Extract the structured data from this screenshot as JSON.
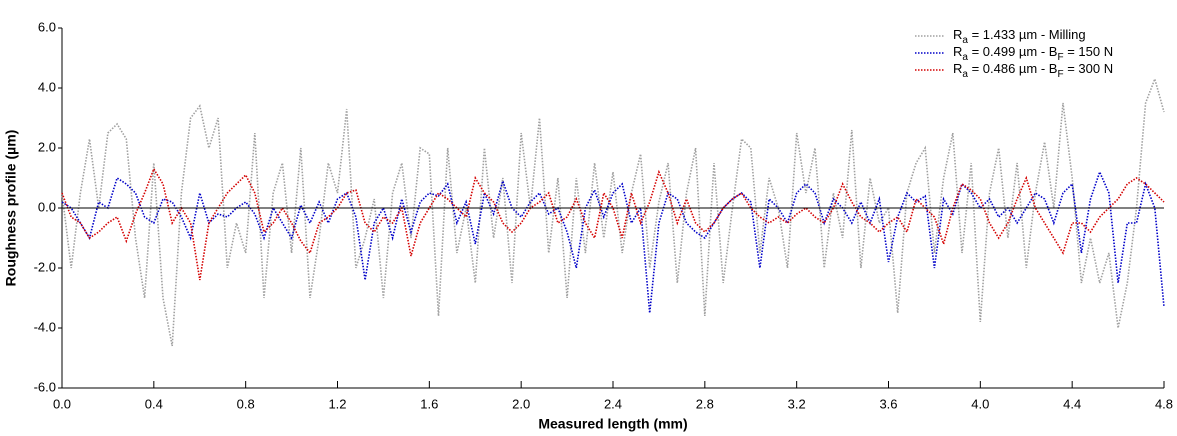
{
  "chart_data": {
    "type": "line",
    "xlabel": "Measured length (mm)",
    "ylabel": "Roughness profile (µm)",
    "x": [
      0,
      0.04,
      0.08,
      0.12,
      0.16,
      0.2,
      0.24,
      0.28,
      0.32,
      0.36,
      0.4,
      0.44,
      0.48,
      0.52,
      0.56,
      0.6,
      0.64,
      0.68,
      0.72,
      0.76,
      0.8,
      0.84,
      0.88,
      0.92,
      0.96,
      1.0,
      1.04,
      1.08,
      1.12,
      1.16,
      1.2,
      1.24,
      1.28,
      1.32,
      1.36,
      1.4,
      1.44,
      1.48,
      1.52,
      1.56,
      1.6,
      1.64,
      1.68,
      1.72,
      1.76,
      1.8,
      1.84,
      1.88,
      1.92,
      1.96,
      2.0,
      2.04,
      2.08,
      2.12,
      2.16,
      2.2,
      2.24,
      2.28,
      2.32,
      2.36,
      2.4,
      2.44,
      2.48,
      2.52,
      2.56,
      2.6,
      2.64,
      2.68,
      2.72,
      2.76,
      2.8,
      2.84,
      2.88,
      2.92,
      2.96,
      3.0,
      3.04,
      3.08,
      3.12,
      3.16,
      3.2,
      3.24,
      3.28,
      3.32,
      3.36,
      3.4,
      3.44,
      3.48,
      3.52,
      3.56,
      3.6,
      3.64,
      3.68,
      3.72,
      3.76,
      3.8,
      3.84,
      3.88,
      3.92,
      3.96,
      4.0,
      4.04,
      4.08,
      4.12,
      4.16,
      4.2,
      4.24,
      4.28,
      4.32,
      4.36,
      4.4,
      4.44,
      4.48,
      4.52,
      4.56,
      4.6,
      4.64,
      4.68,
      4.72,
      4.76,
      4.8
    ],
    "series": [
      {
        "name": "Ra = 1.433 µm - Milling",
        "color": "#a0a0a0",
        "values": [
          0.5,
          -2.0,
          0.5,
          2.3,
          0.0,
          2.5,
          2.8,
          2.3,
          -1.0,
          -3.0,
          1.5,
          -3.0,
          -4.6,
          0.5,
          3.0,
          3.4,
          2.0,
          3.0,
          -2.0,
          -0.5,
          -1.5,
          2.5,
          -3.0,
          0.5,
          1.5,
          -1.5,
          2.0,
          -3.0,
          -1.0,
          1.5,
          0.5,
          3.3,
          -2.0,
          -1.0,
          0.3,
          -3.0,
          0.5,
          1.5,
          -1.0,
          2.0,
          1.8,
          -3.6,
          2.0,
          -1.5,
          0.0,
          -2.5,
          2.0,
          -1.0,
          1.0,
          -2.5,
          2.5,
          0.0,
          3.0,
          -1.5,
          1.0,
          -3.0,
          1.0,
          -1.5,
          1.5,
          -1.0,
          1.2,
          -1.5,
          0.5,
          1.8,
          -2.0,
          0.2,
          1.5,
          -2.5,
          0.5,
          2.0,
          -3.6,
          1.5,
          -2.5,
          0.0,
          2.3,
          2.0,
          -1.5,
          1.0,
          0.0,
          -2.0,
          2.5,
          0.5,
          2.0,
          -2.0,
          0.5,
          -1.0,
          2.6,
          -2.0,
          1.0,
          -0.5,
          0.0,
          -3.5,
          0.5,
          1.5,
          2.0,
          -1.5,
          1.0,
          2.5,
          -1.5,
          1.5,
          -3.8,
          0.5,
          2.0,
          -1.0,
          1.5,
          -2.0,
          0.5,
          2.2,
          0.0,
          3.5,
          1.0,
          -2.5,
          -1.0,
          -2.5,
          -1.5,
          -4.0,
          -2.5,
          0.0,
          3.5,
          4.3,
          3.2
        ]
      },
      {
        "name": "Ra = 0.499 µm - BF = 150 N",
        "color": "#0000c8",
        "values": [
          0.2,
          0.0,
          -0.5,
          -1.0,
          0.2,
          0.0,
          1.0,
          0.8,
          0.5,
          -0.3,
          -0.5,
          0.3,
          0.2,
          -0.3,
          -1.0,
          0.5,
          -0.5,
          -0.2,
          -0.3,
          0.0,
          0.2,
          -0.2,
          -1.0,
          0.0,
          -0.5,
          -1.0,
          0.1,
          -0.5,
          0.2,
          -0.5,
          0.3,
          0.5,
          -0.3,
          -2.4,
          -0.5,
          0.0,
          -1.0,
          0.3,
          -0.8,
          0.2,
          0.5,
          0.4,
          0.8,
          -0.5,
          0.2,
          -1.2,
          0.5,
          -0.2,
          0.9,
          0.0,
          -0.3,
          0.2,
          0.5,
          -0.2,
          0.0,
          -0.8,
          -2.0,
          0.0,
          0.6,
          -0.3,
          0.5,
          0.8,
          -0.5,
          0.0,
          -3.5,
          -0.5,
          0.5,
          0.3,
          -0.5,
          -0.8,
          -1.0,
          -0.5,
          0.0,
          0.3,
          0.5,
          0.2,
          -2.0,
          0.3,
          0.0,
          -0.5,
          0.5,
          0.8,
          0.5,
          -0.5,
          0.3,
          0.0,
          -0.5,
          0.2,
          -0.5,
          0.3,
          -1.8,
          -0.3,
          0.5,
          0.2,
          0.4,
          -2.0,
          0.3,
          -0.2,
          0.8,
          0.5,
          0.0,
          0.3,
          -0.3,
          0.0,
          -0.5,
          0.0,
          0.5,
          0.3,
          -0.5,
          0.5,
          0.8,
          -1.5,
          0.3,
          1.2,
          0.5,
          -2.5,
          -0.5,
          -0.5,
          0.8,
          0.0,
          -3.3
        ]
      },
      {
        "name": "Ra = 0.486 µm - BF = 300 N",
        "color": "#d40000",
        "values": [
          0.5,
          -0.3,
          -0.5,
          -1.0,
          -0.8,
          -0.5,
          -0.3,
          -1.1,
          -0.2,
          0.5,
          1.3,
          0.8,
          -0.5,
          0.0,
          -0.5,
          -2.4,
          -0.5,
          0.0,
          0.5,
          0.8,
          1.1,
          0.5,
          -0.8,
          -0.5,
          0.0,
          -0.5,
          -1.1,
          -1.5,
          -0.5,
          -0.3,
          0.0,
          0.5,
          0.6,
          -0.5,
          -0.8,
          -0.3,
          -0.5,
          0.0,
          -1.6,
          -0.5,
          0.0,
          0.5,
          0.3,
          0.0,
          -0.3,
          1.0,
          0.5,
          0.2,
          -0.5,
          -0.8,
          -0.5,
          0.0,
          0.2,
          0.5,
          -0.5,
          -0.3,
          0.3,
          -0.5,
          -1.0,
          0.5,
          0.0,
          -1.0,
          0.5,
          -0.5,
          0.2,
          1.2,
          0.5,
          -0.5,
          0.3,
          -0.5,
          -0.8,
          -0.5,
          0.0,
          0.3,
          0.5,
          0.0,
          -0.3,
          -0.5,
          -0.3,
          -0.5,
          -0.2,
          0.0,
          -0.3,
          -0.5,
          0.0,
          0.8,
          0.2,
          -0.3,
          -0.5,
          -0.8,
          -0.5,
          -0.3,
          -0.8,
          0.3,
          0.0,
          -0.3,
          -1.2,
          0.0,
          0.8,
          0.6,
          0.3,
          -0.5,
          -1.0,
          -0.5,
          0.3,
          1.0,
          0.0,
          -0.5,
          -1.0,
          -1.5,
          -0.5,
          -0.5,
          -0.8,
          -0.3,
          0.0,
          0.3,
          0.8,
          1.0,
          0.8,
          0.5,
          0.2
        ]
      }
    ],
    "xlim": [
      0,
      4.8
    ],
    "xticks": [
      {
        "value": 0,
        "label": "0.0"
      },
      0.4,
      0.8,
      1.2,
      1.6,
      {
        "value": 2,
        "label": "2.0"
      },
      2.4,
      2.8,
      3.2,
      3.6,
      {
        "value": 4,
        "label": "4.0"
      },
      4.4,
      4.8
    ],
    "ylim": [
      -6,
      6
    ],
    "yticks": [
      {
        "value": -6,
        "label": "-6.0"
      },
      {
        "value": -4,
        "label": "-4.0"
      },
      {
        "value": -2,
        "label": "-2.0"
      },
      {
        "value": 0,
        "label": "0.0"
      },
      {
        "value": 2,
        "label": "2.0"
      },
      {
        "value": 4,
        "label": "4.0"
      },
      {
        "value": 6,
        "label": "6.0"
      }
    ],
    "zero_line": true,
    "legend": "upper right"
  }
}
